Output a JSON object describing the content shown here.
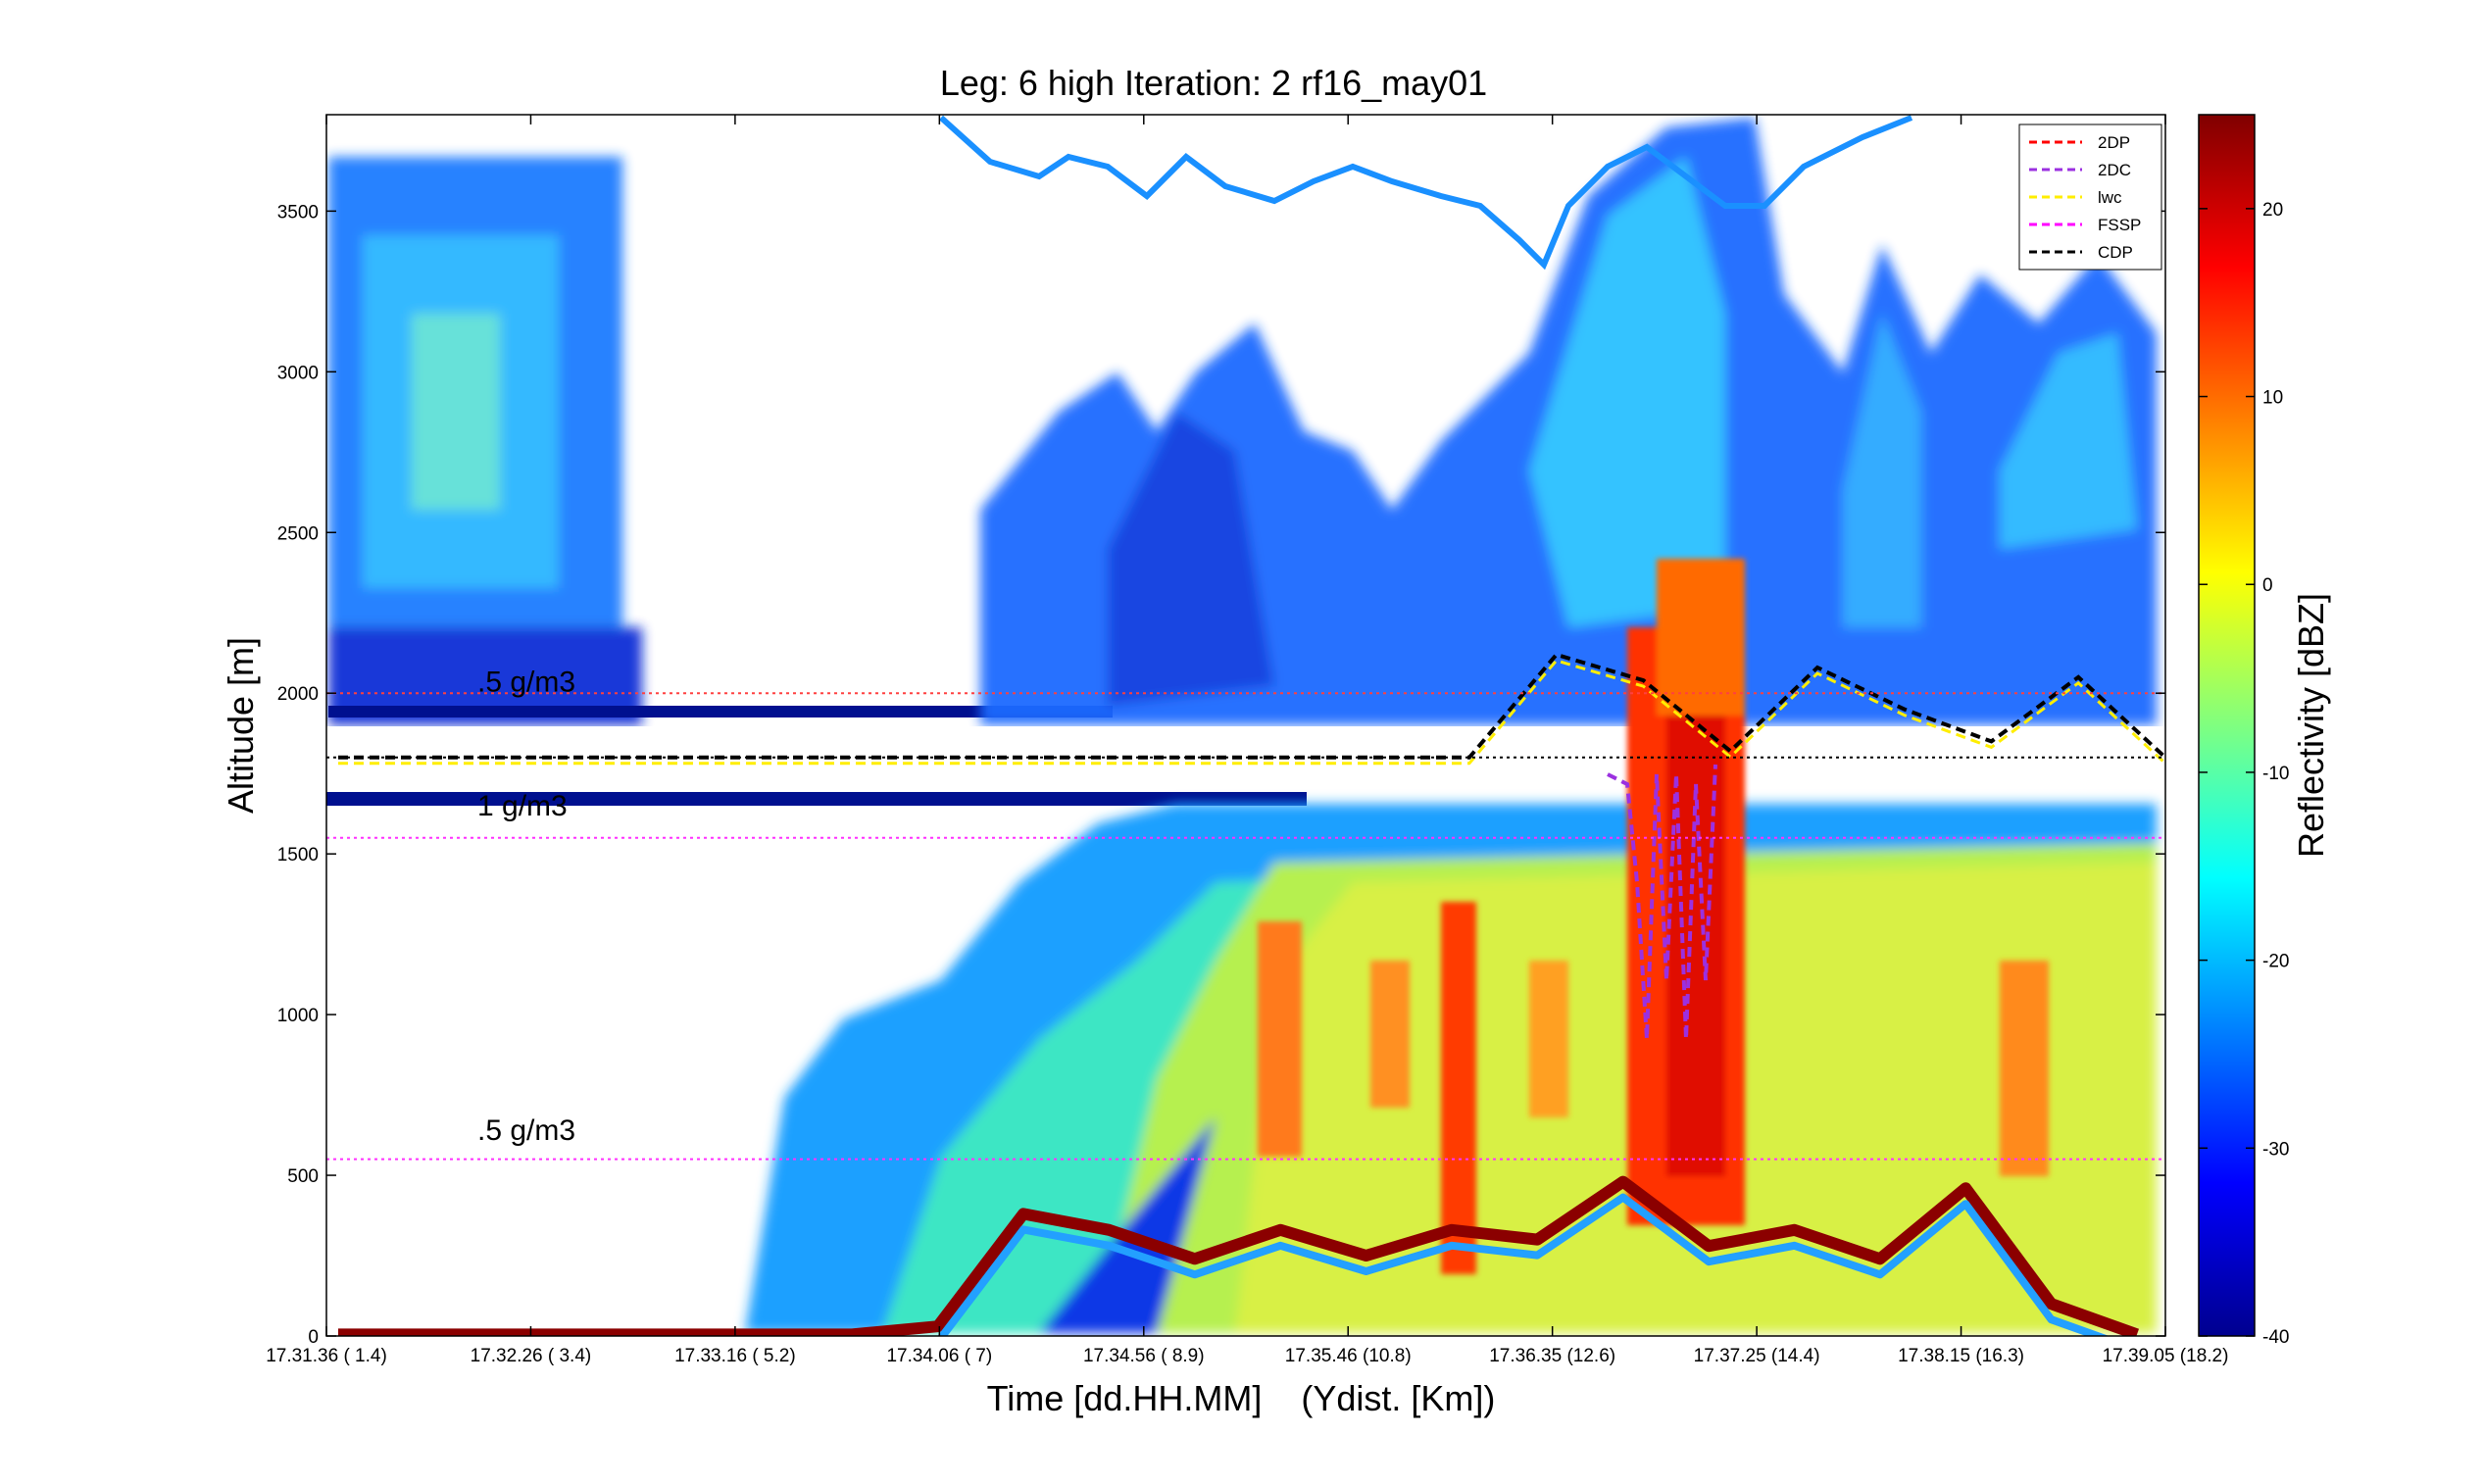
{
  "chart_data": {
    "type": "heatmap",
    "title": "Leg: 6 high Iteration: 2  rf16_may01",
    "xlabel": "Time [dd.HH.MM]    (Ydist. [Km])",
    "ylabel": "Altitude [m]",
    "colorbar_label": "Reflectivity [dBZ]",
    "x_tick_labels": [
      "17.31.36   ( 1.4)",
      "17.32.26   ( 3.4)",
      "17.33.16   ( 5.2)",
      "17.34.06   (  7)",
      "17.34.56   ( 8.9)",
      "17.35.46   (10.8)",
      "17.36.35   (12.6)",
      "17.37.25   (14.4)",
      "17.38.15   (16.3)",
      "17.39.05   (18.2)"
    ],
    "ylim": [
      0,
      3800
    ],
    "y_ticks": [
      0,
      500,
      1000,
      1500,
      2000,
      2500,
      3000,
      3500
    ],
    "colorbar_range": [
      -40,
      25
    ],
    "colorbar_ticks": [
      -40,
      -30,
      -20,
      -10,
      0,
      10,
      20
    ],
    "colormap": "jet",
    "annotations": [
      {
        "text": ".5 g/m3",
        "altitude": 2005
      },
      {
        "text": "1 g/m3",
        "altitude": 1620
      },
      {
        "text": ".5 g/m3",
        "altitude": 610
      }
    ],
    "reference_lines": [
      {
        "altitude": 2000,
        "color": "#ff4040"
      },
      {
        "altitude": 1800,
        "color": "#000000"
      },
      {
        "altitude": 1550,
        "color": "#ff30ff"
      },
      {
        "altitude": 550,
        "color": "#ff30ff"
      }
    ],
    "legend": {
      "location": "top-right",
      "entries": [
        {
          "name": "2DP",
          "color": "#ff0000"
        },
        {
          "name": "2DC",
          "color": "#9b30e0"
        },
        {
          "name": "lwc",
          "color": "#ffee00"
        },
        {
          "name": "FSSP",
          "color": "#ff00ff"
        },
        {
          "name": "CDP",
          "color": "#000000"
        }
      ]
    },
    "surface_echo_altitude": [
      5,
      5,
      5,
      5,
      5,
      5,
      5,
      30,
      380,
      330,
      240,
      330,
      250,
      330,
      300,
      480,
      280,
      330,
      240,
      460,
      100,
      5
    ],
    "probe_trace": [
      1800,
      1800,
      1800,
      1800,
      1800,
      1800,
      1800,
      1800,
      1800,
      1800,
      1800,
      1800,
      1800,
      1800,
      2120,
      2040,
      1820,
      2080,
      1950,
      1850,
      2050,
      1800
    ]
  }
}
